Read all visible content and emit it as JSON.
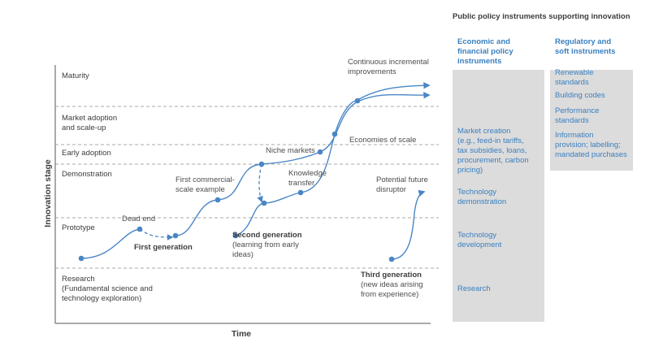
{
  "diagram": {
    "axes": {
      "y_title": "Innovation stage",
      "x_title": "Time"
    },
    "stages": {
      "maturity": [
        "Maturity"
      ],
      "market_adoption": [
        "Market adoption",
        "and scale-up"
      ],
      "early_adoption": [
        "Early adoption"
      ],
      "demonstration": [
        "Demonstration"
      ],
      "prototype": [
        "Prototype"
      ],
      "research": [
        "Research",
        "(Fundamental science and",
        "technology exploration)"
      ]
    },
    "annotations": {
      "dead_end": [
        "Dead end"
      ],
      "first_generation": [
        "First generation"
      ],
      "first_commercial": [
        "First commercial-",
        "scale example"
      ],
      "second_generation_title": "Second generation",
      "second_generation_note": [
        "(learning from early",
        "ideas)"
      ],
      "knowledge_transfer": [
        "Knowledge",
        "transfer"
      ],
      "niche_markets": [
        "Niche markets"
      ],
      "economies_of_scale": [
        "Economies of scale"
      ],
      "continuous_improvements": [
        "Continuous incremental",
        "improvements"
      ],
      "potential_disruptor": [
        "Potential future",
        "disruptor"
      ],
      "third_generation_title": "Third generation",
      "third_generation_note": [
        "(new ideas arising",
        "from experience)"
      ]
    }
  },
  "policy_panel": {
    "title": "Public policy instruments supporting innovation",
    "economic_column": {
      "heading": [
        "Economic and",
        "financial policy",
        "instruments"
      ],
      "items": [
        [
          "Market creation",
          "(e.g., feed-in tariffs,",
          "tax subsidies, loans,",
          "procurement, carbon",
          "pricing)"
        ],
        [
          "Technology",
          "demonstration"
        ],
        [
          "Technology",
          "development"
        ],
        [
          "Research"
        ]
      ]
    },
    "regulatory_column": {
      "heading": [
        "Regulatory and",
        "soft instruments"
      ],
      "items": [
        [
          "Renewable",
          "standards"
        ],
        [
          "Building codes"
        ],
        [
          "Performance",
          "standards"
        ],
        [
          "Information",
          "provision; labelling;",
          "mandated purchases"
        ]
      ]
    }
  }
}
